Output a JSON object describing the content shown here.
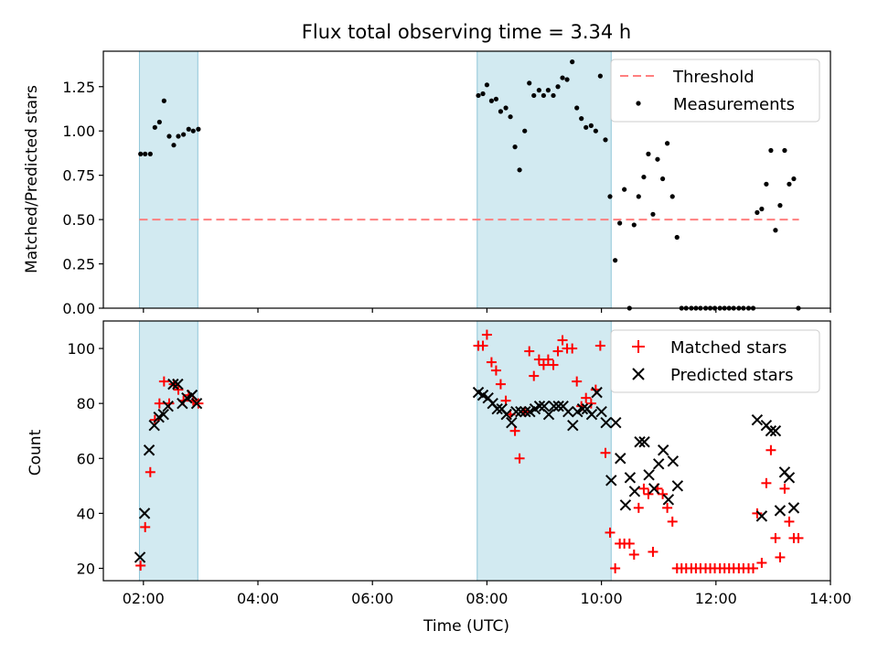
{
  "chart_data": [
    {
      "type": "scatter",
      "title": "Flux total observing time = 3.34 h",
      "xlabel": "",
      "ylabel": "Matched/Predicted stars",
      "xlim": [
        1.3,
        14.0
      ],
      "ylim": [
        0,
        1.45
      ],
      "yticks": [
        0,
        0.25,
        0.5,
        0.75,
        1.0,
        1.25
      ],
      "ytick_labels": [
        "0.00",
        "0.25",
        "0.50",
        "0.75",
        "1.00",
        "1.25"
      ],
      "shaded_spans": [
        [
          1.93,
          2.95
        ],
        [
          7.83,
          10.17
        ]
      ],
      "shade_color": "#add8e6",
      "legend_position": "upper right",
      "legend": [
        {
          "label": "Threshold",
          "marker": "dashed-line",
          "color": "#ff7f7f"
        },
        {
          "label": "Measurements",
          "marker": "dot",
          "color": "#000000"
        }
      ],
      "threshold": {
        "name": "Threshold",
        "y": 0.5,
        "x_range": [
          1.93,
          13.45
        ],
        "color": "#ff7f7f"
      },
      "series": [
        {
          "name": "Measurements",
          "color": "#000000",
          "points": [
            [
              1.95,
              0.87
            ],
            [
              2.03,
              0.87
            ],
            [
              2.12,
              0.87
            ],
            [
              2.2,
              1.02
            ],
            [
              2.28,
              1.05
            ],
            [
              2.36,
              1.17
            ],
            [
              2.45,
              0.97
            ],
            [
              2.53,
              0.92
            ],
            [
              2.61,
              0.97
            ],
            [
              2.7,
              0.98
            ],
            [
              2.79,
              1.01
            ],
            [
              2.87,
              1.0
            ],
            [
              2.96,
              1.01
            ],
            [
              7.85,
              1.2
            ],
            [
              7.93,
              1.21
            ],
            [
              8.0,
              1.26
            ],
            [
              8.08,
              1.17
            ],
            [
              8.16,
              1.18
            ],
            [
              8.24,
              1.11
            ],
            [
              8.33,
              1.13
            ],
            [
              8.41,
              1.08
            ],
            [
              8.49,
              0.91
            ],
            [
              8.57,
              0.78
            ],
            [
              8.66,
              1.0
            ],
            [
              8.74,
              1.27
            ],
            [
              8.82,
              1.2
            ],
            [
              8.91,
              1.23
            ],
            [
              8.99,
              1.2
            ],
            [
              9.07,
              1.23
            ],
            [
              9.16,
              1.2
            ],
            [
              9.24,
              1.25
            ],
            [
              9.32,
              1.3
            ],
            [
              9.4,
              1.29
            ],
            [
              9.49,
              1.39
            ],
            [
              9.57,
              1.13
            ],
            [
              9.65,
              1.07
            ],
            [
              9.73,
              1.02
            ],
            [
              9.82,
              1.03
            ],
            [
              9.9,
              1.0
            ],
            [
              9.98,
              1.31
            ],
            [
              10.07,
              0.95
            ],
            [
              10.15,
              0.63
            ],
            [
              10.24,
              0.27
            ],
            [
              10.32,
              0.48
            ],
            [
              10.4,
              0.67
            ],
            [
              10.49,
              0.0
            ],
            [
              10.57,
              0.47
            ],
            [
              10.65,
              0.63
            ],
            [
              10.74,
              0.74
            ],
            [
              10.82,
              0.87
            ],
            [
              10.9,
              0.53
            ],
            [
              10.98,
              0.84
            ],
            [
              11.07,
              0.73
            ],
            [
              11.15,
              0.93
            ],
            [
              11.24,
              0.63
            ],
            [
              11.32,
              0.4
            ],
            [
              11.4,
              0.0
            ],
            [
              11.48,
              0.0
            ],
            [
              11.57,
              0.0
            ],
            [
              11.65,
              0.0
            ],
            [
              11.73,
              0.0
            ],
            [
              11.82,
              0.0
            ],
            [
              11.9,
              0.0
            ],
            [
              11.98,
              0.0
            ],
            [
              12.07,
              0.0
            ],
            [
              12.15,
              0.0
            ],
            [
              12.23,
              0.0
            ],
            [
              12.31,
              0.0
            ],
            [
              12.4,
              0.0
            ],
            [
              12.48,
              0.0
            ],
            [
              12.57,
              0.0
            ],
            [
              12.65,
              0.0
            ],
            [
              12.72,
              0.54
            ],
            [
              12.8,
              0.56
            ],
            [
              12.88,
              0.7
            ],
            [
              12.96,
              0.89
            ],
            [
              13.04,
              0.44
            ],
            [
              13.12,
              0.58
            ],
            [
              13.2,
              0.89
            ],
            [
              13.28,
              0.7
            ],
            [
              13.36,
              0.73
            ],
            [
              13.44,
              0.0
            ]
          ]
        }
      ]
    },
    {
      "type": "scatter",
      "title": "",
      "xlabel": "Time (UTC)",
      "ylabel": "Count",
      "xlim": [
        1.3,
        14.0
      ],
      "ylim": [
        15.5,
        110
      ],
      "yticks": [
        20,
        40,
        60,
        80,
        100
      ],
      "ytick_labels": [
        "20",
        "40",
        "60",
        "80",
        "100"
      ],
      "xticks": [
        2,
        4,
        6,
        8,
        10,
        12,
        14
      ],
      "xtick_labels": [
        "02:00",
        "04:00",
        "06:00",
        "08:00",
        "10:00",
        "12:00",
        "14:00"
      ],
      "shaded_spans": [
        [
          1.93,
          2.95
        ],
        [
          7.83,
          10.17
        ]
      ],
      "shade_color": "#add8e6",
      "legend_position": "upper right",
      "legend": [
        {
          "label": "Matched stars",
          "marker": "plus",
          "color": "#ff0000"
        },
        {
          "label": "Predicted stars",
          "marker": "x",
          "color": "#000000"
        }
      ],
      "series": [
        {
          "name": "Matched stars",
          "marker": "plus",
          "color": "#ff0000",
          "points": [
            [
              1.95,
              21
            ],
            [
              2.03,
              35
            ],
            [
              2.12,
              55
            ],
            [
              2.2,
              74
            ],
            [
              2.28,
              80
            ],
            [
              2.36,
              88
            ],
            [
              2.45,
              80
            ],
            [
              2.53,
              87
            ],
            [
              2.61,
              85
            ],
            [
              2.7,
              81
            ],
            [
              2.79,
              83
            ],
            [
              2.87,
              81
            ],
            [
              2.96,
              80
            ],
            [
              7.85,
              101
            ],
            [
              7.93,
              101
            ],
            [
              8.0,
              105
            ],
            [
              8.08,
              95
            ],
            [
              8.16,
              92
            ],
            [
              8.24,
              87
            ],
            [
              8.33,
              81
            ],
            [
              8.41,
              76
            ],
            [
              8.49,
              70
            ],
            [
              8.57,
              60
            ],
            [
              8.66,
              77
            ],
            [
              8.74,
              99
            ],
            [
              8.82,
              90
            ],
            [
              8.91,
              96
            ],
            [
              8.99,
              94
            ],
            [
              9.07,
              96
            ],
            [
              9.16,
              94
            ],
            [
              9.24,
              99
            ],
            [
              9.32,
              103
            ],
            [
              9.4,
              100
            ],
            [
              9.49,
              100
            ],
            [
              9.57,
              88
            ],
            [
              9.65,
              79
            ],
            [
              9.73,
              82
            ],
            [
              9.82,
              80
            ],
            [
              9.9,
              85
            ],
            [
              9.98,
              101
            ],
            [
              10.07,
              62
            ],
            [
              10.15,
              33
            ],
            [
              10.24,
              20
            ],
            [
              10.32,
              29
            ],
            [
              10.4,
              29
            ],
            [
              10.49,
              29
            ],
            [
              10.57,
              25
            ],
            [
              10.65,
              42
            ],
            [
              10.74,
              49
            ],
            [
              10.82,
              47
            ],
            [
              10.9,
              26
            ],
            [
              10.98,
              49
            ],
            [
              11.07,
              47
            ],
            [
              11.15,
              42
            ],
            [
              11.24,
              37
            ],
            [
              11.32,
              20
            ],
            [
              11.4,
              20
            ],
            [
              11.48,
              20
            ],
            [
              11.57,
              20
            ],
            [
              11.65,
              20
            ],
            [
              11.73,
              20
            ],
            [
              11.82,
              20
            ],
            [
              11.9,
              20
            ],
            [
              11.98,
              20
            ],
            [
              12.07,
              20
            ],
            [
              12.15,
              20
            ],
            [
              12.23,
              20
            ],
            [
              12.31,
              20
            ],
            [
              12.4,
              20
            ],
            [
              12.48,
              20
            ],
            [
              12.57,
              20
            ],
            [
              12.65,
              20
            ],
            [
              12.72,
              40
            ],
            [
              12.8,
              22
            ],
            [
              12.88,
              51
            ],
            [
              12.96,
              63
            ],
            [
              13.04,
              31
            ],
            [
              13.12,
              24
            ],
            [
              13.2,
              49
            ],
            [
              13.28,
              37
            ],
            [
              13.36,
              31
            ],
            [
              13.44,
              31
            ]
          ]
        },
        {
          "name": "Predicted stars",
          "marker": "x",
          "color": "#000000",
          "points": [
            [
              1.94,
              24
            ],
            [
              2.02,
              40
            ],
            [
              2.1,
              63
            ],
            [
              2.19,
              72
            ],
            [
              2.27,
              75
            ],
            [
              2.35,
              76
            ],
            [
              2.43,
              79
            ],
            [
              2.52,
              87
            ],
            [
              2.6,
              87
            ],
            [
              2.68,
              80
            ],
            [
              2.76,
              82
            ],
            [
              2.85,
              83
            ],
            [
              2.93,
              80
            ],
            [
              7.85,
              84
            ],
            [
              7.93,
              83
            ],
            [
              8.02,
              82
            ],
            [
              8.1,
              80
            ],
            [
              8.18,
              78
            ],
            [
              8.26,
              78
            ],
            [
              8.34,
              76
            ],
            [
              8.43,
              73
            ],
            [
              8.51,
              77
            ],
            [
              8.59,
              77
            ],
            [
              8.67,
              77
            ],
            [
              8.75,
              77
            ],
            [
              8.84,
              78
            ],
            [
              8.92,
              79
            ],
            [
              9.0,
              79
            ],
            [
              9.08,
              76
            ],
            [
              9.17,
              79
            ],
            [
              9.25,
              79
            ],
            [
              9.33,
              79
            ],
            [
              9.42,
              77
            ],
            [
              9.5,
              72
            ],
            [
              9.58,
              77
            ],
            [
              9.67,
              78
            ],
            [
              9.75,
              78
            ],
            [
              9.83,
              76
            ],
            [
              9.92,
              84
            ],
            [
              10.0,
              77
            ],
            [
              10.08,
              73
            ],
            [
              10.17,
              52
            ],
            [
              10.25,
              73
            ],
            [
              10.33,
              60
            ],
            [
              10.42,
              43
            ],
            [
              10.5,
              53
            ],
            [
              10.58,
              48
            ],
            [
              10.67,
              66
            ],
            [
              10.75,
              66
            ],
            [
              10.83,
              54
            ],
            [
              10.92,
              49
            ],
            [
              11.0,
              58
            ],
            [
              11.08,
              63
            ],
            [
              11.17,
              45
            ],
            [
              11.25,
              59
            ],
            [
              11.33,
              50
            ],
            [
              12.72,
              74
            ],
            [
              12.8,
              39
            ],
            [
              12.88,
              72
            ],
            [
              12.96,
              70
            ],
            [
              13.04,
              70
            ],
            [
              13.12,
              41
            ],
            [
              13.2,
              55
            ],
            [
              13.28,
              53
            ],
            [
              13.36,
              42
            ]
          ]
        }
      ]
    }
  ]
}
